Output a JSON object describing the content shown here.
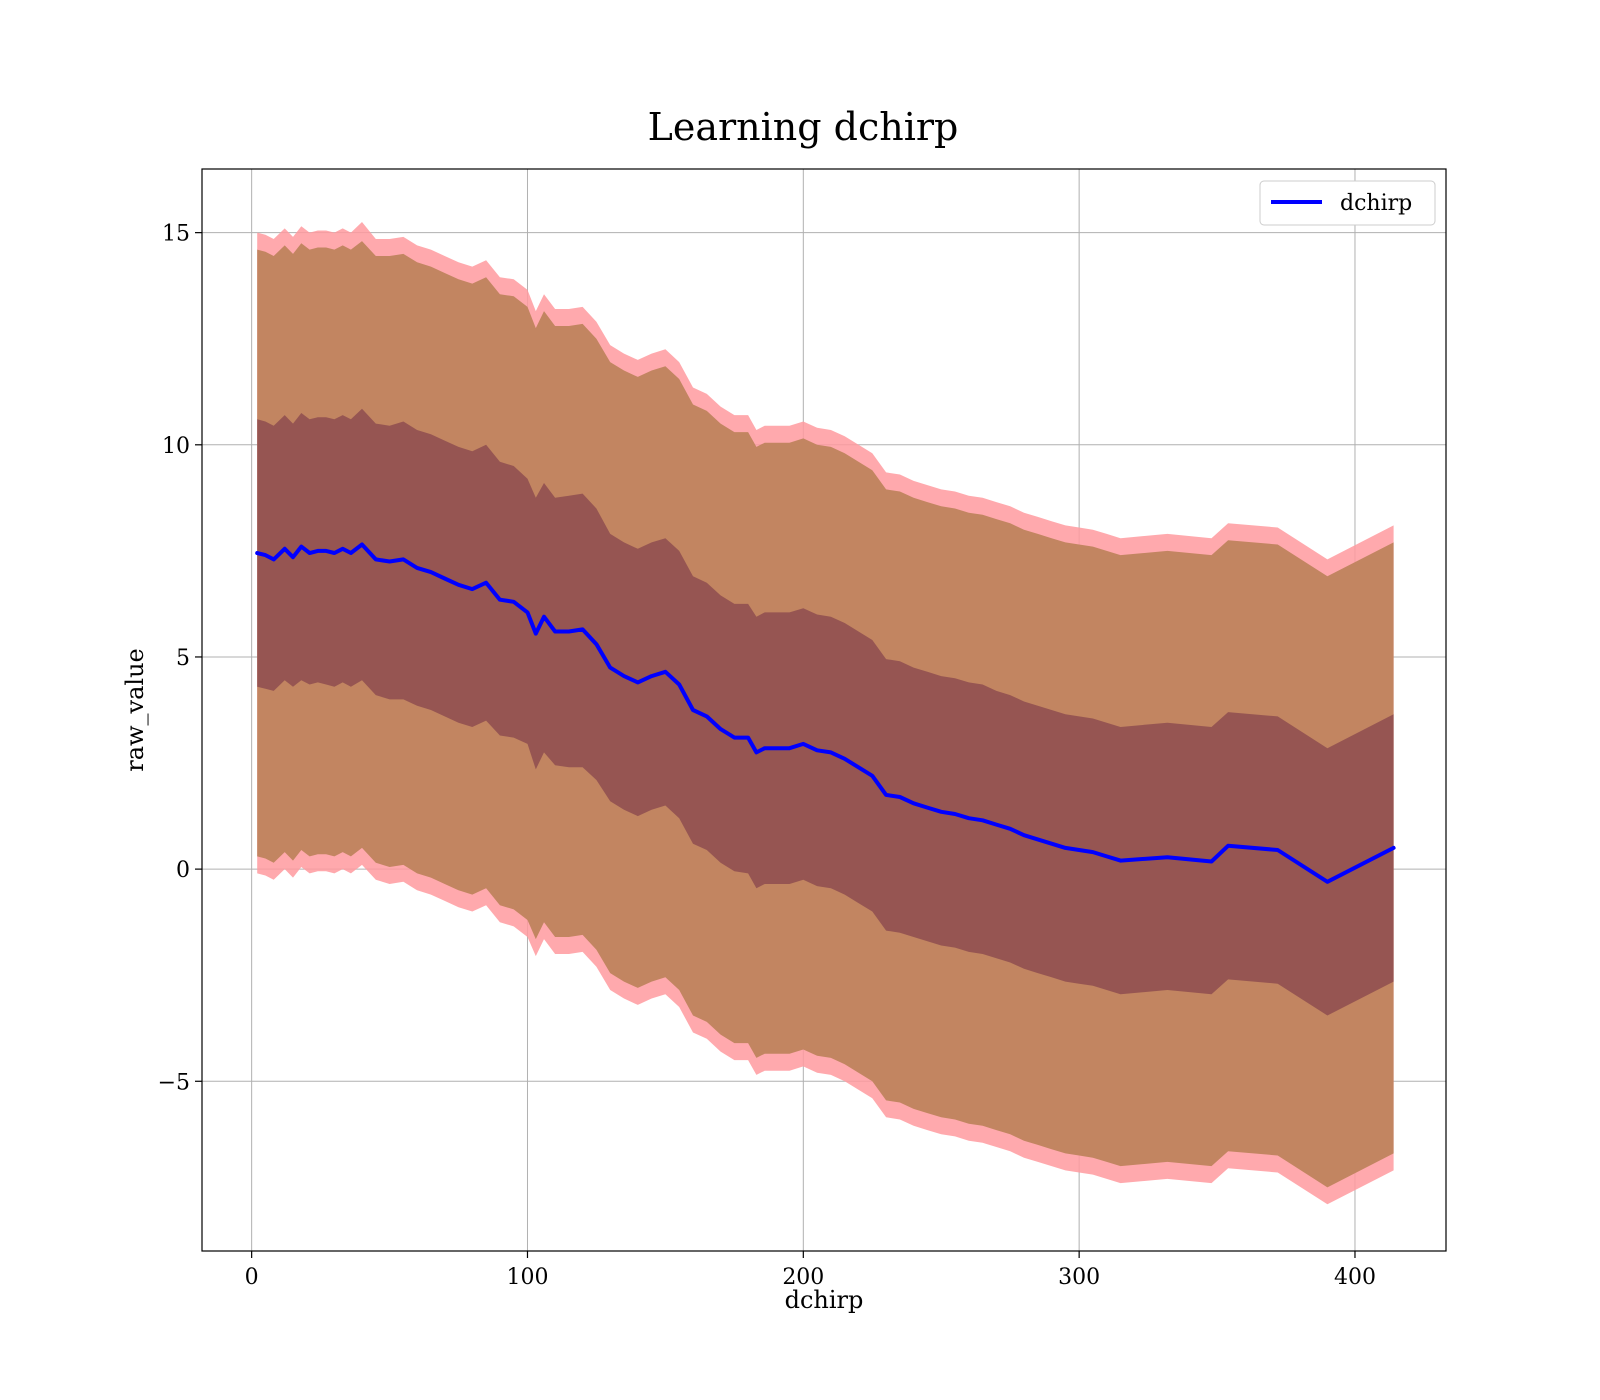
{
  "chart_data": {
    "type": "line",
    "title": "Learning dchirp",
    "xlabel": "dchirp",
    "ylabel": "raw_value",
    "xlim": [
      -18,
      433
    ],
    "ylim": [
      -9,
      16.5
    ],
    "xticks": [
      0,
      100,
      200,
      300,
      400
    ],
    "yticks": [
      -5,
      0,
      5,
      10,
      15
    ],
    "ytick_labels": [
      "−5",
      "0",
      "5",
      "10",
      "15"
    ],
    "grid": true,
    "legend_position": "top-right",
    "colors": {
      "line": "#0000ff",
      "inner_band": "#7a3848",
      "outer_band": "#c28561",
      "outermost_band": "#ff9a9f"
    },
    "series": [
      {
        "name": "dchirp",
        "x": [
          2,
          5,
          8,
          12,
          15,
          18,
          21,
          24,
          27,
          30,
          33,
          36,
          40,
          45,
          50,
          55,
          60,
          65,
          70,
          75,
          80,
          85,
          90,
          95,
          100,
          103,
          106,
          110,
          115,
          120,
          125,
          130,
          135,
          140,
          145,
          150,
          155,
          160,
          165,
          170,
          175,
          180,
          183,
          186,
          190,
          195,
          200,
          205,
          210,
          215,
          220,
          225,
          230,
          235,
          240,
          245,
          250,
          255,
          260,
          265,
          270,
          275,
          280,
          285,
          290,
          295,
          300,
          305,
          310,
          315,
          332,
          348,
          354,
          372,
          390,
          414
        ],
        "y": [
          7.45,
          7.4,
          7.3,
          7.55,
          7.35,
          7.6,
          7.45,
          7.5,
          7.5,
          7.45,
          7.55,
          7.45,
          7.65,
          7.3,
          7.25,
          7.3,
          7.1,
          7.0,
          6.85,
          6.7,
          6.6,
          6.75,
          6.35,
          6.3,
          6.05,
          5.55,
          5.95,
          5.6,
          5.6,
          5.65,
          5.3,
          4.75,
          4.55,
          4.4,
          4.55,
          4.65,
          4.35,
          3.75,
          3.6,
          3.3,
          3.1,
          3.1,
          2.75,
          2.85,
          2.85,
          2.85,
          2.95,
          2.8,
          2.75,
          2.6,
          2.4,
          2.2,
          1.75,
          1.7,
          1.55,
          1.45,
          1.35,
          1.3,
          1.2,
          1.15,
          1.05,
          0.95,
          0.8,
          0.7,
          0.6,
          0.5,
          0.45,
          0.4,
          0.3,
          0.2,
          0.28,
          0.18,
          0.55,
          0.45,
          -0.3,
          0.5
        ],
        "inner_lower": [
          4.3,
          4.25,
          4.2,
          4.45,
          4.3,
          4.45,
          4.35,
          4.4,
          4.35,
          4.3,
          4.4,
          4.3,
          4.45,
          4.1,
          4.0,
          4.0,
          3.85,
          3.75,
          3.6,
          3.45,
          3.35,
          3.5,
          3.15,
          3.1,
          2.95,
          2.35,
          2.75,
          2.45,
          2.4,
          2.4,
          2.1,
          1.6,
          1.4,
          1.25,
          1.4,
          1.5,
          1.2,
          0.6,
          0.45,
          0.15,
          -0.05,
          -0.1,
          -0.45,
          -0.35,
          -0.35,
          -0.35,
          -0.25,
          -0.4,
          -0.45,
          -0.6,
          -0.8,
          -1.0,
          -1.45,
          -1.5,
          -1.6,
          -1.7,
          -1.8,
          -1.85,
          -1.95,
          -2.0,
          -2.1,
          -2.2,
          -2.35,
          -2.45,
          -2.55,
          -2.65,
          -2.7,
          -2.75,
          -2.85,
          -2.95,
          -2.85,
          -2.95,
          -2.6,
          -2.7,
          -3.45,
          -2.65
        ],
        "inner_upper": [
          10.6,
          10.55,
          10.45,
          10.7,
          10.5,
          10.75,
          10.6,
          10.65,
          10.65,
          10.6,
          10.7,
          10.6,
          10.85,
          10.5,
          10.45,
          10.55,
          10.35,
          10.25,
          10.1,
          9.95,
          9.85,
          10.0,
          9.6,
          9.5,
          9.2,
          8.75,
          9.1,
          8.75,
          8.8,
          8.85,
          8.5,
          7.9,
          7.7,
          7.55,
          7.7,
          7.8,
          7.5,
          6.9,
          6.75,
          6.45,
          6.25,
          6.25,
          5.95,
          6.05,
          6.05,
          6.05,
          6.15,
          6.0,
          5.95,
          5.8,
          5.6,
          5.4,
          4.95,
          4.9,
          4.75,
          4.65,
          4.55,
          4.5,
          4.4,
          4.35,
          4.2,
          4.1,
          3.95,
          3.85,
          3.75,
          3.65,
          3.6,
          3.55,
          3.45,
          3.35,
          3.45,
          3.35,
          3.7,
          3.6,
          2.85,
          3.65
        ],
        "outer_lower": [
          0.3,
          0.25,
          0.15,
          0.4,
          0.2,
          0.45,
          0.3,
          0.35,
          0.35,
          0.3,
          0.4,
          0.3,
          0.5,
          0.15,
          0.05,
          0.1,
          -0.1,
          -0.2,
          -0.35,
          -0.5,
          -0.6,
          -0.45,
          -0.85,
          -0.95,
          -1.2,
          -1.65,
          -1.25,
          -1.6,
          -1.6,
          -1.55,
          -1.9,
          -2.45,
          -2.65,
          -2.8,
          -2.65,
          -2.55,
          -2.85,
          -3.45,
          -3.6,
          -3.9,
          -4.1,
          -4.1,
          -4.45,
          -4.35,
          -4.35,
          -4.35,
          -4.25,
          -4.4,
          -4.45,
          -4.6,
          -4.8,
          -5.0,
          -5.45,
          -5.5,
          -5.65,
          -5.75,
          -5.85,
          -5.9,
          -6.0,
          -6.05,
          -6.15,
          -6.25,
          -6.4,
          -6.5,
          -6.6,
          -6.7,
          -6.75,
          -6.8,
          -6.9,
          -7.0,
          -6.9,
          -7.0,
          -6.65,
          -6.75,
          -7.5,
          -6.7
        ],
        "outer_upper": [
          14.6,
          14.55,
          14.45,
          14.7,
          14.5,
          14.75,
          14.6,
          14.65,
          14.65,
          14.6,
          14.7,
          14.6,
          14.8,
          14.45,
          14.45,
          14.5,
          14.3,
          14.2,
          14.05,
          13.9,
          13.8,
          13.95,
          13.55,
          13.5,
          13.25,
          12.75,
          13.15,
          12.8,
          12.8,
          12.85,
          12.5,
          11.95,
          11.75,
          11.6,
          11.75,
          11.85,
          11.55,
          10.95,
          10.8,
          10.5,
          10.3,
          10.3,
          9.95,
          10.05,
          10.05,
          10.05,
          10.15,
          10.0,
          9.95,
          9.8,
          9.6,
          9.4,
          8.95,
          8.9,
          8.75,
          8.65,
          8.55,
          8.5,
          8.4,
          8.35,
          8.25,
          8.15,
          8.0,
          7.9,
          7.8,
          7.7,
          7.65,
          7.6,
          7.5,
          7.4,
          7.5,
          7.4,
          7.75,
          7.65,
          6.9,
          7.7
        ],
        "outermost_lower": [
          -0.1,
          -0.15,
          -0.25,
          0.0,
          -0.2,
          0.05,
          -0.1,
          -0.05,
          -0.05,
          -0.1,
          0.0,
          -0.1,
          0.1,
          -0.25,
          -0.35,
          -0.3,
          -0.5,
          -0.6,
          -0.75,
          -0.9,
          -1.0,
          -0.85,
          -1.25,
          -1.35,
          -1.6,
          -2.05,
          -1.65,
          -2.0,
          -2.0,
          -1.95,
          -2.3,
          -2.85,
          -3.05,
          -3.2,
          -3.05,
          -2.95,
          -3.25,
          -3.85,
          -4.0,
          -4.3,
          -4.5,
          -4.5,
          -4.85,
          -4.75,
          -4.75,
          -4.75,
          -4.65,
          -4.8,
          -4.85,
          -5.0,
          -5.2,
          -5.4,
          -5.85,
          -5.9,
          -6.05,
          -6.15,
          -6.25,
          -6.3,
          -6.4,
          -6.45,
          -6.55,
          -6.65,
          -6.8,
          -6.9,
          -7.0,
          -7.1,
          -7.15,
          -7.2,
          -7.3,
          -7.4,
          -7.3,
          -7.4,
          -7.05,
          -7.15,
          -7.9,
          -7.1
        ],
        "outermost_upper": [
          15.0,
          14.95,
          14.85,
          15.1,
          14.9,
          15.15,
          15.0,
          15.05,
          15.05,
          15.0,
          15.1,
          15.0,
          15.25,
          14.85,
          14.85,
          14.9,
          14.7,
          14.6,
          14.45,
          14.3,
          14.2,
          14.35,
          13.95,
          13.9,
          13.65,
          13.15,
          13.55,
          13.2,
          13.2,
          13.25,
          12.9,
          12.35,
          12.15,
          12.0,
          12.15,
          12.25,
          11.95,
          11.35,
          11.2,
          10.9,
          10.7,
          10.7,
          10.35,
          10.45,
          10.45,
          10.45,
          10.55,
          10.4,
          10.35,
          10.2,
          10.0,
          9.8,
          9.35,
          9.3,
          9.15,
          9.05,
          8.95,
          8.9,
          8.8,
          8.75,
          8.65,
          8.55,
          8.4,
          8.3,
          8.2,
          8.1,
          8.05,
          8.0,
          7.9,
          7.8,
          7.9,
          7.8,
          8.15,
          8.05,
          7.3,
          8.1
        ]
      }
    ]
  }
}
